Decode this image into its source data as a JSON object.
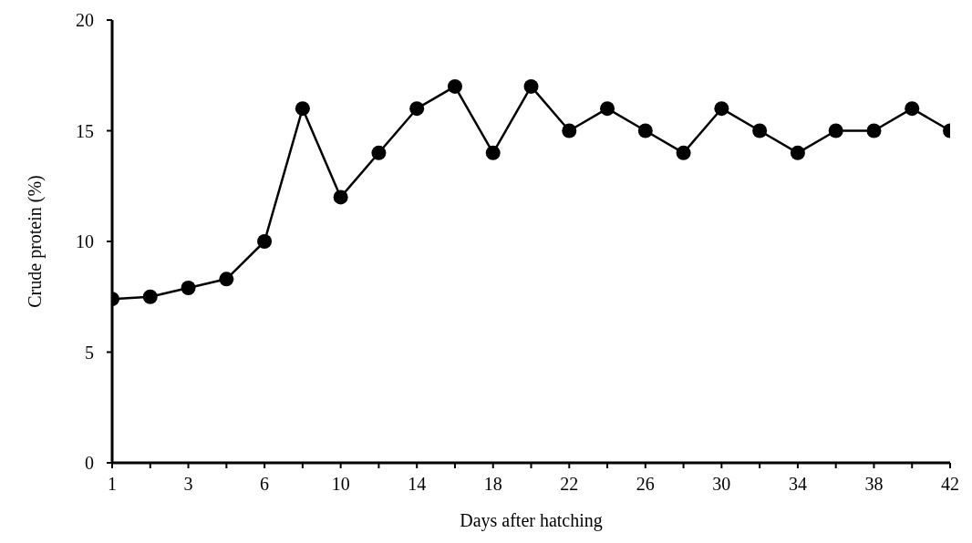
{
  "chart_data": {
    "type": "line",
    "xlabel": "Days after hatching",
    "ylabel": "Crude protein (%)",
    "categories": [
      "1",
      null,
      "3",
      null,
      "6",
      null,
      "10",
      null,
      "14",
      null,
      "18",
      null,
      "22",
      null,
      "26",
      null,
      "30",
      null,
      "34",
      null,
      "38",
      null,
      "42"
    ],
    "series": [
      {
        "color": "#000000",
        "values": [
          7.4,
          7.5,
          7.9,
          8.3,
          10,
          16,
          12,
          14,
          16,
          17,
          14,
          17,
          15,
          16,
          15,
          14,
          16,
          15,
          14,
          15,
          15,
          16,
          15
        ]
      }
    ],
    "ylim": [
      0,
      20
    ],
    "yticks": [
      0,
      5,
      10,
      15,
      20
    ],
    "grid": false,
    "legend": false,
    "marker": "circle",
    "line_style": "solid"
  }
}
